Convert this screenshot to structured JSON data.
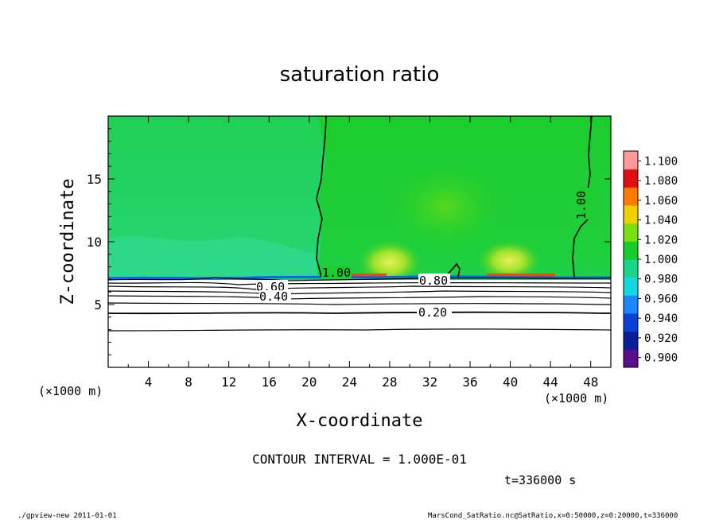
{
  "chart_data": {
    "type": "heatmap",
    "title": "saturation ratio",
    "xlabel": "X-coordinate",
    "ylabel": "Z-coordinate",
    "x_unit": "(×1000 m)",
    "y_unit": "(×1000 m)",
    "xlim": [
      0,
      50
    ],
    "ylim": [
      0,
      20
    ],
    "x_ticks": [
      4,
      8,
      12,
      16,
      20,
      24,
      28,
      32,
      36,
      40,
      44,
      48
    ],
    "y_ticks": [
      5,
      10,
      15
    ],
    "colorbar": {
      "levels": [
        0.9,
        0.92,
        0.94,
        0.96,
        0.98,
        1.0,
        1.02,
        1.04,
        1.06,
        1.08,
        1.1
      ],
      "labels": [
        "0.900",
        "0.920",
        "0.940",
        "0.960",
        "0.980",
        "1.000",
        "1.020",
        "1.040",
        "1.060",
        "1.080",
        "1.100"
      ],
      "colors": [
        "#5a0f8a",
        "#0a1f9a",
        "#0a3fd8",
        "#1a86ff",
        "#12d8e0",
        "#18d68a",
        "#18cc2c",
        "#7ae010",
        "#f0d000",
        "#ff7a00",
        "#e01010",
        "#ff9a9a"
      ]
    },
    "contour_labels": [
      "1.00",
      "1.00",
      "0.80",
      "0.60",
      "0.40",
      "0.20"
    ],
    "dry_layer_top_km": 7.1,
    "contour_interval_text": "CONTOUR INTERVAL = 1.000E-01",
    "time_text": "t=336000 s"
  },
  "footer": {
    "left": "./gpview-new  2011-01-01",
    "right": "MarsCond_SatRatio.nc@SatRatio,x=0:50000,z=0:20000,t=336000"
  }
}
